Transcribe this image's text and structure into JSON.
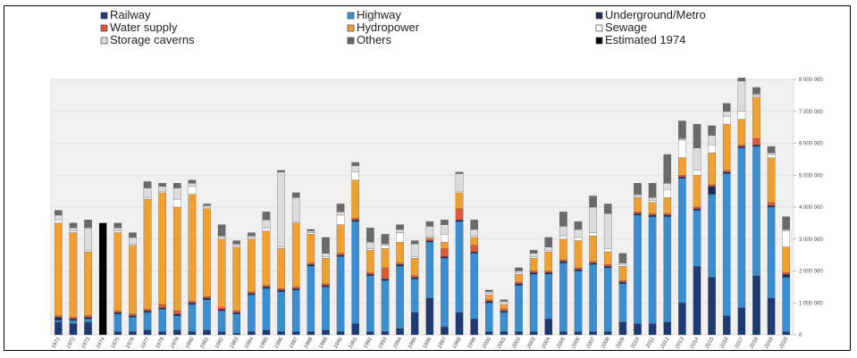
{
  "chart_data": {
    "type": "bar",
    "stacked": true,
    "grid": true,
    "legend_position": "top",
    "ylim": [
      0,
      8000000
    ],
    "y_ticks": [
      "0",
      "1 000 000",
      "2 000 000",
      "3 000 000",
      "4 000 000",
      "5 000 000",
      "6 000 000",
      "7 000 000",
      "8 000 000"
    ],
    "categories": [
      "1971",
      "1972",
      "1973",
      "1974",
      "1975",
      "1976",
      "1977",
      "1978",
      "1979",
      "1980",
      "1981",
      "1982",
      "1983",
      "1984",
      "1985",
      "1986",
      "1987",
      "1988",
      "1989",
      "1990",
      "1991",
      "1992",
      "1993",
      "1994",
      "1995",
      "1996",
      "1997",
      "1998",
      "1999",
      "2000",
      "2001",
      "2002",
      "2003",
      "2004",
      "2005",
      "2006",
      "2007",
      "2008",
      "2009",
      "2010",
      "2011",
      "2012",
      "2013",
      "2014",
      "2015",
      "2016",
      "2017",
      "2018",
      "2019",
      "2020"
    ],
    "series": [
      {
        "name": "Railway",
        "color": "#1f3a73",
        "values": [
          400000,
          350000,
          400000,
          0,
          100000,
          100000,
          150000,
          100000,
          150000,
          100000,
          150000,
          100000,
          50000,
          100000,
          150000,
          100000,
          100000,
          100000,
          150000,
          100000,
          350000,
          100000,
          100000,
          200000,
          700000,
          1150000,
          250000,
          700000,
          500000,
          100000,
          100000,
          100000,
          100000,
          500000,
          100000,
          100000,
          100000,
          100000,
          400000,
          350000,
          350000,
          400000,
          1000000,
          2150000,
          1800000,
          600000,
          850000,
          1850000,
          1150000,
          100000
        ]
      },
      {
        "name": "Highway",
        "color": "#3a8fd3",
        "values": [
          50000,
          100000,
          100000,
          0,
          550000,
          450000,
          550000,
          700000,
          450000,
          850000,
          950000,
          650000,
          600000,
          1150000,
          1300000,
          1250000,
          1300000,
          2050000,
          1350000,
          2350000,
          3200000,
          1750000,
          1600000,
          1950000,
          1050000,
          1750000,
          2150000,
          2850000,
          2050000,
          900000,
          600000,
          1450000,
          1800000,
          1400000,
          2150000,
          1900000,
          2100000,
          2000000,
          1200000,
          3400000,
          3350000,
          3300000,
          3900000,
          1750000,
          2600000,
          4450000,
          5000000,
          4050000,
          2850000,
          1700000
        ]
      },
      {
        "name": "Underground/Metro",
        "color": "#1a2b55",
        "values": [
          100000,
          50000,
          50000,
          0,
          50000,
          50000,
          50000,
          50000,
          50000,
          50000,
          50000,
          50000,
          50000,
          50000,
          50000,
          50000,
          50000,
          50000,
          50000,
          50000,
          50000,
          50000,
          50000,
          50000,
          50000,
          50000,
          50000,
          50000,
          50000,
          50000,
          50000,
          50000,
          50000,
          50000,
          50000,
          50000,
          50000,
          50000,
          50000,
          50000,
          50000,
          50000,
          50000,
          50000,
          250000,
          50000,
          50000,
          50000,
          50000,
          100000
        ]
      },
      {
        "name": "Water supply",
        "color": "#e05a3a",
        "values": [
          50000,
          50000,
          50000,
          0,
          50000,
          50000,
          50000,
          100000,
          100000,
          50000,
          50000,
          50000,
          50000,
          50000,
          50000,
          50000,
          50000,
          50000,
          50000,
          50000,
          50000,
          50000,
          350000,
          50000,
          50000,
          50000,
          250000,
          350000,
          200000,
          50000,
          50000,
          50000,
          50000,
          50000,
          50000,
          50000,
          50000,
          50000,
          50000,
          50000,
          50000,
          50000,
          50000,
          50000,
          50000,
          50000,
          50000,
          200000,
          100000,
          50000
        ]
      },
      {
        "name": "Hydropower",
        "color": "#f0a030",
        "values": [
          2900000,
          2650000,
          2000000,
          0,
          2450000,
          2150000,
          3450000,
          3500000,
          3250000,
          3350000,
          2750000,
          2150000,
          2000000,
          1650000,
          1700000,
          1250000,
          2000000,
          900000,
          800000,
          900000,
          1200000,
          700000,
          600000,
          650000,
          550000,
          50000,
          200000,
          500000,
          250000,
          150000,
          150000,
          250000,
          400000,
          600000,
          650000,
          850000,
          800000,
          400000,
          450000,
          450000,
          350000,
          500000,
          550000,
          1000000,
          1000000,
          1450000,
          800000,
          1300000,
          1400000,
          800000
        ]
      },
      {
        "name": "Sewage",
        "color": "#ffffff",
        "values": [
          100000,
          50000,
          50000,
          0,
          50000,
          50000,
          50000,
          50000,
          250000,
          250000,
          50000,
          50000,
          50000,
          50000,
          100000,
          50000,
          50000,
          50000,
          50000,
          300000,
          250000,
          50000,
          100000,
          300000,
          50000,
          50000,
          250000,
          50000,
          50000,
          50000,
          50000,
          50000,
          50000,
          50000,
          100000,
          100000,
          100000,
          100000,
          50000,
          50000,
          50000,
          250000,
          550000,
          150000,
          250000,
          250000,
          250000,
          50000,
          100000,
          500000
        ]
      },
      {
        "name": "Storage caverns",
        "color": "#dcdcdc",
        "values": [
          150000,
          100000,
          700000,
          0,
          100000,
          200000,
          300000,
          150000,
          350000,
          100000,
          50000,
          50000,
          50000,
          50000,
          250000,
          2350000,
          750000,
          50000,
          100000,
          100000,
          200000,
          200000,
          50000,
          100000,
          400000,
          300000,
          300000,
          550000,
          200000,
          50000,
          50000,
          50000,
          100000,
          100000,
          300000,
          250000,
          800000,
          1100000,
          50000,
          50000,
          100000,
          200000,
          50000,
          700000,
          300000,
          150000,
          950000,
          50000,
          50000,
          50000
        ]
      },
      {
        "name": "Others",
        "color": "#6a6a6a",
        "values": [
          150000,
          150000,
          250000,
          0,
          150000,
          150000,
          200000,
          100000,
          150000,
          100000,
          50000,
          350000,
          100000,
          100000,
          250000,
          50000,
          150000,
          50000,
          500000,
          250000,
          100000,
          450000,
          300000,
          150000,
          100000,
          150000,
          150000,
          50000,
          300000,
          50000,
          50000,
          100000,
          100000,
          300000,
          450000,
          250000,
          350000,
          300000,
          300000,
          350000,
          450000,
          900000,
          550000,
          750000,
          300000,
          250000,
          100000,
          200000,
          200000,
          400000
        ]
      },
      {
        "name": "Estimated 1974",
        "color": "#000000",
        "values": [
          0,
          0,
          0,
          3500000,
          0,
          0,
          0,
          0,
          0,
          0,
          0,
          0,
          0,
          0,
          0,
          0,
          0,
          0,
          0,
          0,
          0,
          0,
          0,
          0,
          0,
          0,
          0,
          0,
          0,
          0,
          0,
          0,
          0,
          0,
          0,
          0,
          0,
          0,
          0,
          0,
          0,
          0,
          0,
          0,
          0,
          0,
          0,
          0,
          0,
          0
        ]
      }
    ]
  }
}
